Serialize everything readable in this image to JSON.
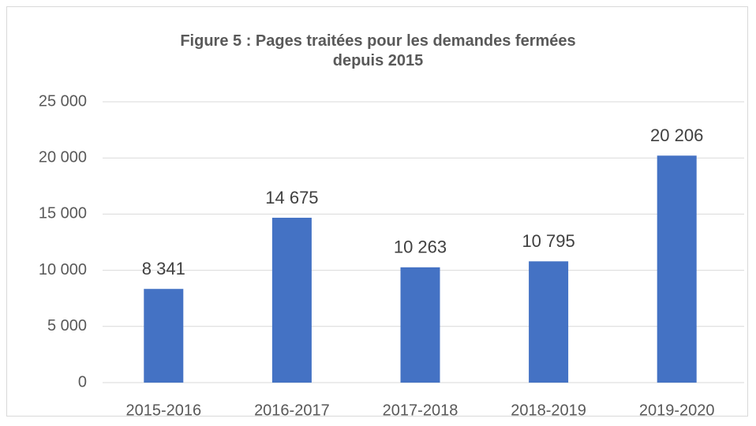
{
  "chart_data": {
    "type": "bar",
    "title": "Figure 5 : Pages traitées pour les demandes fermées depuis 2015",
    "categories": [
      "2015-2016",
      "2016-2017",
      "2017-2018",
      "2018-2019",
      "2019-2020"
    ],
    "values": [
      8341,
      14675,
      10263,
      10795,
      20206
    ],
    "value_labels": [
      "8 341",
      "14 675",
      "10 263",
      "10 795",
      "20 206"
    ],
    "color": "#4472c4",
    "ylim": [
      0,
      25000
    ],
    "yticks": [
      0,
      {
        "value": 5000,
        "label": "5 000"
      },
      {
        "value": 10000,
        "label": "10 000"
      },
      {
        "value": 15000,
        "label": "15 000"
      },
      {
        "value": 20000,
        "label": "20 000"
      },
      {
        "value": 25000,
        "label": "25 000"
      }
    ],
    "grid": true
  }
}
